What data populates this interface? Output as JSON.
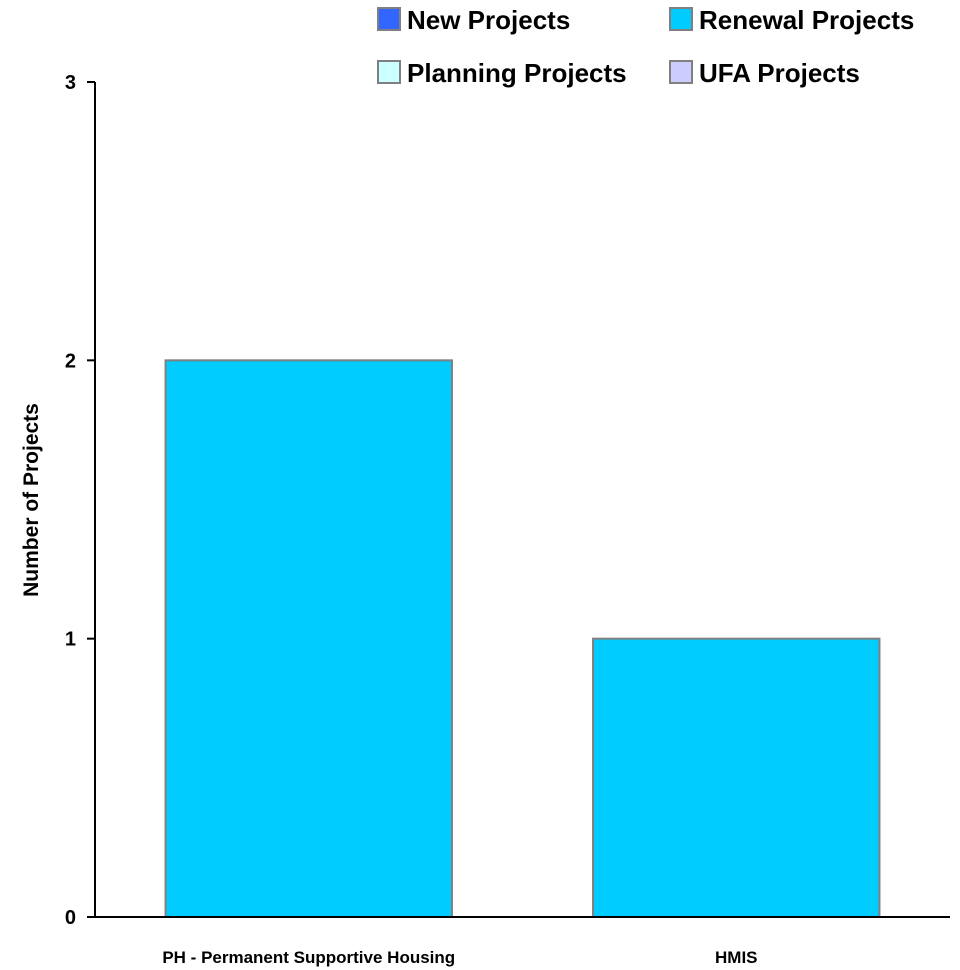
{
  "chart_data": {
    "type": "bar",
    "categories": [
      "PH - Permanent Supportive Housing",
      "HMIS"
    ],
    "series": [
      {
        "name": "New Projects",
        "color": "#3366ff",
        "values": [
          0,
          0
        ]
      },
      {
        "name": "Renewal Projects",
        "color": "#00ccff",
        "values": [
          2,
          1
        ]
      },
      {
        "name": "Planning Projects",
        "color": "#ccffff",
        "values": [
          0,
          0
        ]
      },
      {
        "name": "UFA Projects",
        "color": "#ccccff",
        "values": [
          0,
          0
        ]
      }
    ],
    "title": "",
    "xlabel": "",
    "ylabel": "Number of Projects",
    "ylim": [
      0,
      3
    ],
    "yticks": [
      0,
      1,
      2,
      3
    ],
    "stacked": true,
    "grid": false,
    "legend_position": "top-right",
    "bar_border_color": "#808080"
  }
}
